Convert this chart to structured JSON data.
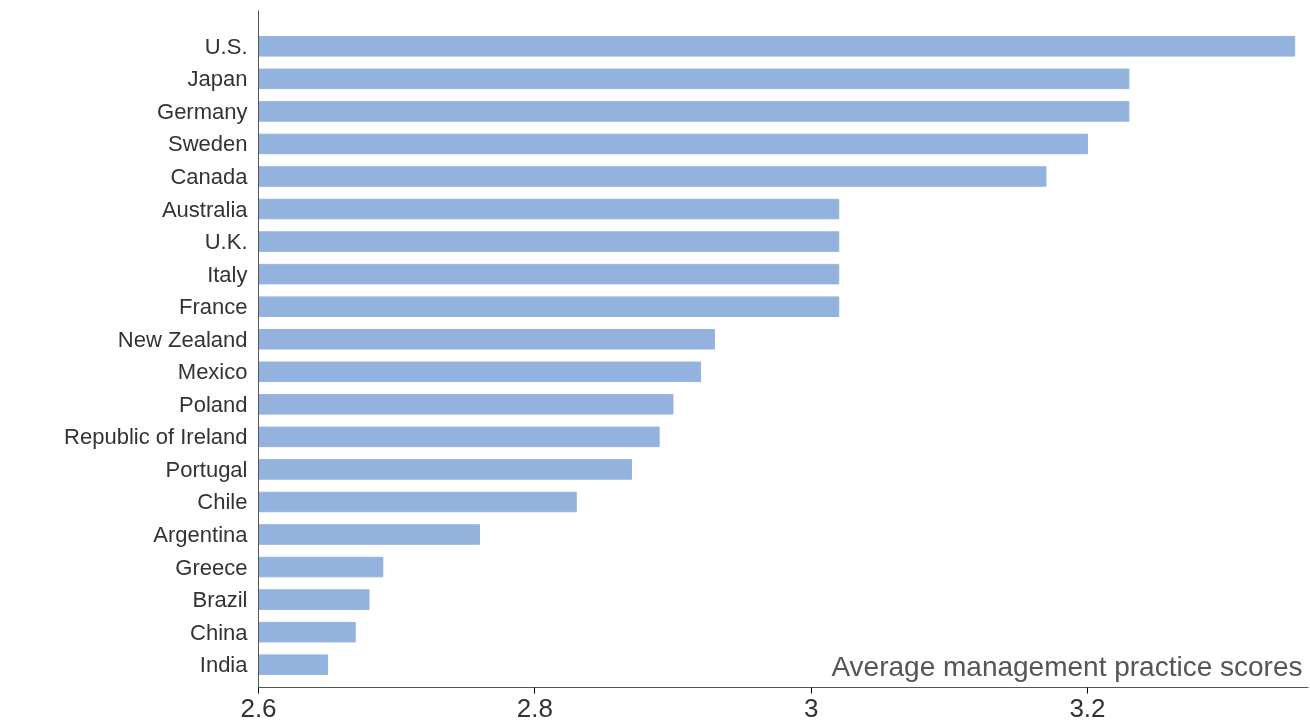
{
  "chart_data": {
    "type": "bar",
    "orientation": "horizontal",
    "xlabel": "Average management practice scores",
    "categories": [
      "U.S.",
      "Japan",
      "Germany",
      "Sweden",
      "Canada",
      "Australia",
      "U.K.",
      "Italy",
      "France",
      "New Zealand",
      "Mexico",
      "Poland",
      "Republic of Ireland",
      "Portugal",
      "Chile",
      "Argentina",
      "Greece",
      "Brazil",
      "China",
      "India"
    ],
    "values": [
      3.35,
      3.23,
      3.23,
      3.2,
      3.17,
      3.02,
      3.02,
      3.02,
      3.02,
      2.93,
      2.92,
      2.9,
      2.89,
      2.87,
      2.83,
      2.76,
      2.69,
      2.68,
      2.67,
      2.65
    ],
    "color": "#93b3de",
    "xlim": [
      2.6,
      3.36
    ],
    "xticks": [
      2.6,
      2.8,
      3,
      3.2
    ],
    "grid": false
  }
}
